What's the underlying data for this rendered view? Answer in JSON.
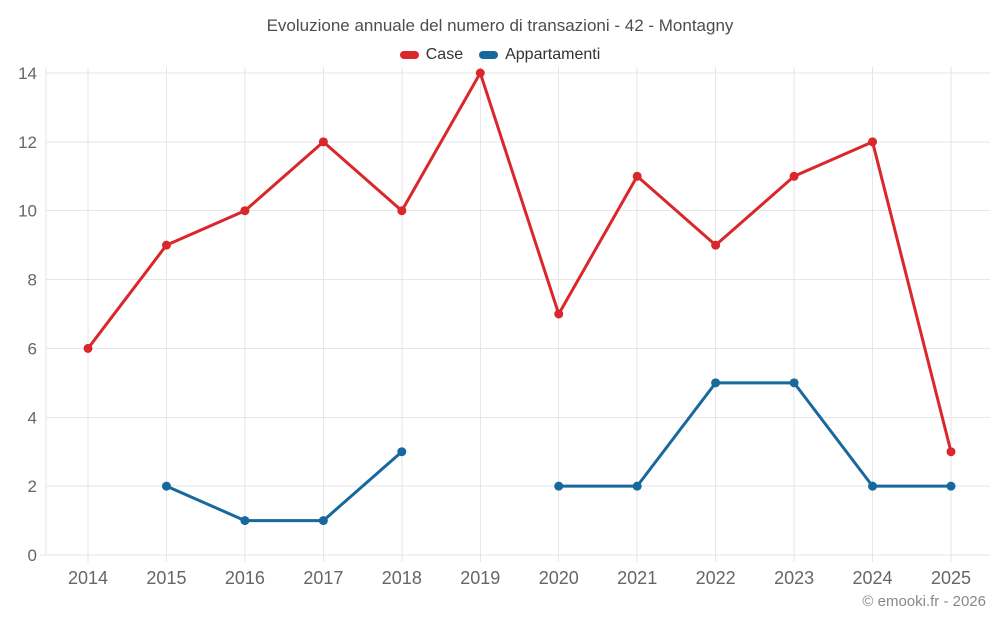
{
  "title": "Evoluzione annuale del numero di transazioni - 42 - Montagny",
  "watermark": "© emooki.fr - 2026",
  "colors": {
    "case_red": "#da272c",
    "appartamenti_blue": "#17689d",
    "gridline": "#e6e6e6",
    "axis_label": "#666666",
    "title_text": "#4d4d4d",
    "legend_text": "#333333",
    "watermark_text": "#888888"
  },
  "chart_data": {
    "type": "line",
    "title": "Evoluzione annuale del numero di transazioni - 42 - Montagny",
    "categories": [
      "2014",
      "2015",
      "2016",
      "2017",
      "2018",
      "2019",
      "2020",
      "2021",
      "2022",
      "2023",
      "2024",
      "2025"
    ],
    "series": [
      {
        "name": "Case",
        "color": "#da272c",
        "values": [
          6,
          9,
          10,
          12,
          10,
          14,
          7,
          11,
          9,
          11,
          12,
          3
        ]
      },
      {
        "name": "Appartamenti",
        "color": "#17689d",
        "values": [
          null,
          2,
          1,
          1,
          3,
          null,
          2,
          2,
          5,
          5,
          2,
          2
        ]
      }
    ],
    "xlabel": "",
    "ylabel": "",
    "ylim": [
      0,
      14
    ],
    "yticks": [
      0,
      2,
      4,
      6,
      8,
      10,
      12,
      14
    ],
    "grid": true,
    "legend_position": "top",
    "marker": "circle",
    "gaps": {
      "Appartamenti": [
        "2014",
        "2019"
      ]
    }
  }
}
